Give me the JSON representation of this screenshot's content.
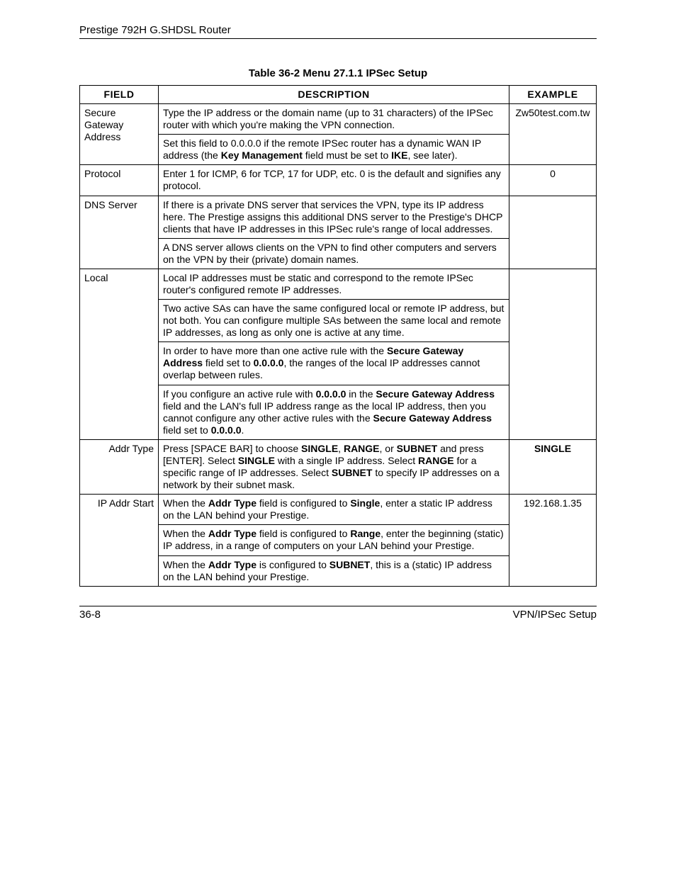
{
  "header": {
    "product": "Prestige 792H G.SHDSL Router"
  },
  "caption": "Table 36-2 Menu 27.1.1 IPSec Setup",
  "columns": {
    "field": "FIELD",
    "desc": "DESCRIPTION",
    "example": "EXAMPLE"
  },
  "rows": {
    "secure_gateway": {
      "field": "Secure Gateway Address",
      "p1a": "Type the IP address or the domain name (up to 31 characters) of the IPSec router with which you're making the VPN connection.",
      "p1b_pre": "Set this field to 0.0.0.0 if the remote IPSec router has a dynamic WAN IP address (the ",
      "p1b_b1": "Key Management",
      "p1b_mid": " field must be set to ",
      "p1b_b2": "IKE",
      "p1b_post": ", see later).",
      "example": "Zw50test.com.tw"
    },
    "protocol": {
      "field": "Protocol",
      "p1": "Enter 1 for ICMP, 6 for TCP, 17 for UDP, etc. 0 is the default and signifies any protocol.",
      "example": "0"
    },
    "dns": {
      "field": "DNS Server",
      "p1": "If there is a private DNS server that services the VPN, type its IP address here. The Prestige assigns this additional DNS server to the Prestige's DHCP clients that have IP addresses in this IPSec rule's range of local addresses.",
      "p2": "A DNS server allows clients on the VPN to find other computers and servers on the VPN by their (private) domain names."
    },
    "local": {
      "field": "Local",
      "p1": "Local IP addresses must be static and correspond to the remote IPSec router's configured remote IP addresses.",
      "p2": "Two active SAs can have the same configured local or remote IP address, but not both. You can configure multiple SAs between the same local and remote IP addresses, as long as only one is active at any time.",
      "p3_pre": "In order to have more than one active rule with the ",
      "p3_b1": "Secure Gateway Address",
      "p3_mid": " field set to ",
      "p3_b2": "0.0.0.0",
      "p3_post": ", the ranges of the local IP addresses cannot overlap between rules.",
      "p4_pre": "If you configure an active rule with ",
      "p4_b1": "0.0.0.0",
      "p4_mid1": " in the ",
      "p4_b2": "Secure Gateway Address",
      "p4_mid2": " field and the LAN's full IP address range as the local IP address, then you cannot configure any other active rules with the ",
      "p4_b3": "Secure Gateway Address",
      "p4_mid3": " field set to ",
      "p4_b4": "0.0.0.0",
      "p4_post": "."
    },
    "addr_type": {
      "field": "Addr Type",
      "p1_pre": "Press [SPACE BAR] to choose ",
      "p1_b1": "SINGLE",
      "p1_m1": ", ",
      "p1_b2": "RANGE",
      "p1_m2": ", or ",
      "p1_b3": "SUBNET",
      "p1_m3": " and press [ENTER]. Select ",
      "p1_b4": "SINGLE",
      "p1_m4": " with a single IP address. Select ",
      "p1_b5": "RANGE",
      "p1_m5": " for a specific range of IP addresses. Select ",
      "p1_b6": "SUBNET",
      "p1_m6": " to specify IP addresses on a network by their subnet mask.",
      "example": "SINGLE"
    },
    "ip_addr_start": {
      "field": "IP Addr Start",
      "p1_pre": "When the ",
      "p1_b1": "Addr Type",
      "p1_mid": " field is configured to ",
      "p1_b2": "Single",
      "p1_post": ", enter a static IP address on the LAN behind your Prestige.",
      "p2_pre": "When the ",
      "p2_b1": "Addr Type",
      "p2_mid": " field is configured to ",
      "p2_b2": "Range",
      "p2_post": ", enter the beginning (static) IP address, in a range of computers on your LAN behind your Prestige.",
      "p3_pre": "When the ",
      "p3_b1": "Addr Type",
      "p3_mid": " is configured to ",
      "p3_b2": "SUBNET",
      "p3_post": ", this is a (static) IP address on the LAN behind your Prestige.",
      "example": "192.168.1.35"
    }
  },
  "footer": {
    "page": "36-8",
    "section": "VPN/IPSec Setup"
  }
}
